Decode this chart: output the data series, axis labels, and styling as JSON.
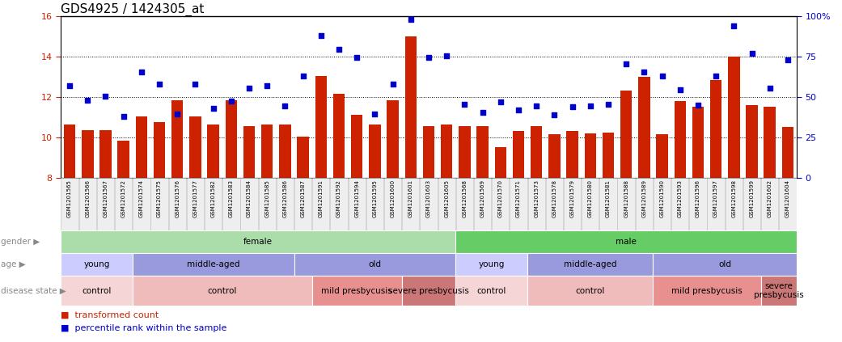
{
  "title": "GDS4925 / 1424305_at",
  "samples": [
    "GSM1201565",
    "GSM1201566",
    "GSM1201567",
    "GSM1201572",
    "GSM1201574",
    "GSM1201575",
    "GSM1201576",
    "GSM1201577",
    "GSM1201582",
    "GSM1201583",
    "GSM1201584",
    "GSM1201585",
    "GSM1201586",
    "GSM1201587",
    "GSM1201591",
    "GSM1201592",
    "GSM1201594",
    "GSM1201595",
    "GSM1201600",
    "GSM1201601",
    "GSM1201603",
    "GSM1201605",
    "GSM1201568",
    "GSM1201569",
    "GSM1201570",
    "GSM1201571",
    "GSM1201573",
    "GSM1201578",
    "GSM1201579",
    "GSM1201580",
    "GSM1201581",
    "GSM1201588",
    "GSM1201589",
    "GSM1201590",
    "GSM1201593",
    "GSM1201596",
    "GSM1201597",
    "GSM1201598",
    "GSM1201599",
    "GSM1201602",
    "GSM1201604"
  ],
  "bar_values": [
    10.65,
    10.35,
    10.35,
    9.85,
    11.05,
    10.75,
    11.85,
    11.05,
    10.65,
    11.85,
    10.55,
    10.65,
    10.65,
    10.05,
    13.05,
    12.15,
    11.1,
    10.65,
    11.85,
    15.0,
    10.55,
    10.65,
    10.55,
    10.55,
    9.5,
    10.3,
    10.55,
    10.15,
    10.3,
    10.2,
    10.25,
    12.3,
    13.0,
    10.15,
    11.8,
    11.5,
    12.85,
    14.0,
    11.6,
    11.5,
    10.5
  ],
  "dot_values": [
    12.55,
    11.85,
    12.05,
    11.05,
    13.25,
    12.65,
    11.15,
    12.65,
    11.45,
    11.8,
    12.45,
    12.55,
    11.55,
    13.05,
    15.05,
    14.35,
    13.95,
    11.15,
    12.65,
    15.85,
    13.95,
    14.05,
    11.65,
    11.25,
    11.75,
    11.35,
    11.55,
    11.1,
    11.5,
    11.55,
    11.65,
    13.65,
    13.25,
    13.05,
    12.35,
    11.6,
    13.05,
    15.5,
    14.15,
    12.45,
    13.85
  ],
  "ylim_left": [
    8,
    16
  ],
  "ylim_right": [
    0,
    100
  ],
  "yticks_left": [
    8,
    10,
    12,
    14,
    16
  ],
  "yticks_right": [
    0,
    25,
    50,
    75,
    100
  ],
  "bar_color": "#cc2200",
  "dot_color": "#0000cc",
  "gender_groups": [
    {
      "label": "female",
      "start": 0,
      "end": 22,
      "color": "#aaddaa"
    },
    {
      "label": "male",
      "start": 22,
      "end": 41,
      "color": "#66cc66"
    }
  ],
  "age_groups": [
    {
      "label": "young",
      "start": 0,
      "end": 4,
      "color": "#ccccff"
    },
    {
      "label": "middle-aged",
      "start": 4,
      "end": 13,
      "color": "#9999dd"
    },
    {
      "label": "old",
      "start": 13,
      "end": 22,
      "color": "#9999dd"
    },
    {
      "label": "young",
      "start": 22,
      "end": 26,
      "color": "#ccccff"
    },
    {
      "label": "middle-aged",
      "start": 26,
      "end": 33,
      "color": "#9999dd"
    },
    {
      "label": "old",
      "start": 33,
      "end": 41,
      "color": "#9999dd"
    }
  ],
  "disease_groups": [
    {
      "label": "control",
      "start": 0,
      "end": 4,
      "color": "#f5d5d5"
    },
    {
      "label": "control",
      "start": 4,
      "end": 14,
      "color": "#f0bbbb"
    },
    {
      "label": "mild presbycusis",
      "start": 14,
      "end": 19,
      "color": "#e89090"
    },
    {
      "label": "severe presbycusis",
      "start": 19,
      "end": 22,
      "color": "#cc7777"
    },
    {
      "label": "control",
      "start": 22,
      "end": 26,
      "color": "#f5d5d5"
    },
    {
      "label": "control",
      "start": 26,
      "end": 33,
      "color": "#f0bbbb"
    },
    {
      "label": "mild presbycusis",
      "start": 33,
      "end": 39,
      "color": "#e89090"
    },
    {
      "label": "severe\npresbycusis",
      "start": 39,
      "end": 41,
      "color": "#cc7777"
    }
  ],
  "row_labels": [
    "gender",
    "age",
    "disease state"
  ],
  "legend_bar_label": "transformed count",
  "legend_dot_label": "percentile rank within the sample"
}
